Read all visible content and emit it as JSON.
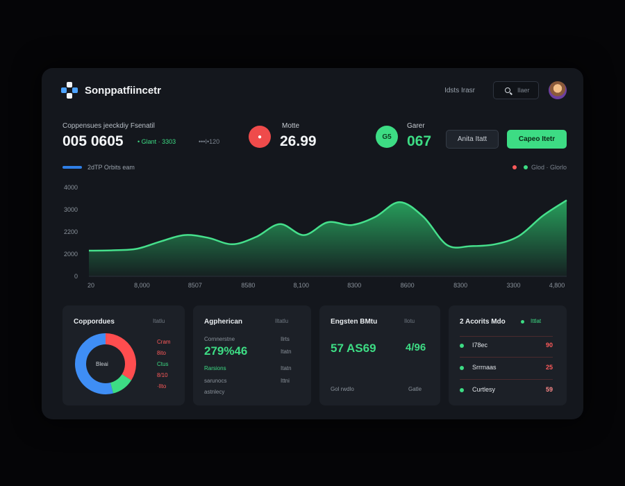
{
  "header": {
    "app_title": "Sonppatfiincetr",
    "link": "Idsts Irasr",
    "search_placeholder": "Ilaer"
  },
  "stats": {
    "primary": {
      "label": "Coppensues jeeckdiy Fsenatil",
      "value": "005 0605",
      "change": "• Glant · 3303",
      "extra": "•••I•120"
    },
    "second": {
      "icon_label": "●",
      "label": "Motte",
      "value": "26.99"
    },
    "third": {
      "icon_label": "G5",
      "label": "Garer",
      "value": "067"
    },
    "buttons": {
      "secondary": "Anita Itatt",
      "primary": "Capeo Itetr"
    }
  },
  "legend": {
    "label": "2dTP Orbits eam",
    "right_label": "Glod · Glorlo"
  },
  "chart_data": {
    "type": "area",
    "title": "",
    "x_ticks": [
      "20",
      "8,000",
      "8507",
      "8580",
      "8,100",
      "8300",
      "8600",
      "8300",
      "3300",
      "4,800"
    ],
    "y_ticks": [
      "4000",
      "3000",
      "2200",
      "2000",
      "0"
    ],
    "x": [
      0,
      1,
      2,
      3,
      4,
      5,
      6,
      7,
      8,
      9,
      10,
      11,
      12,
      13,
      14,
      15,
      16,
      17,
      18,
      19,
      20
    ],
    "values": [
      1400,
      1420,
      1500,
      1900,
      2250,
      2100,
      1750,
      2150,
      2850,
      2250,
      2950,
      2800,
      3250,
      4050,
      3250,
      1700,
      1650,
      1750,
      2200,
      3300,
      4150
    ],
    "ylim": [
      0,
      5000
    ],
    "series": [
      {
        "name": "2dTP Orbits eam",
        "color": "#2ecc71"
      }
    ],
    "legend_position": "top-right",
    "grid": false
  },
  "cards": {
    "donut": {
      "title": "Coppordues",
      "tag": "Itatlu",
      "center_label": "Bleai",
      "segments": [
        {
          "value": 34,
          "color": "#ff4d4f"
        },
        {
          "value": 12,
          "color": "#3ddc84"
        },
        {
          "value": 54,
          "color": "#3f8ef5"
        }
      ],
      "labels": [
        {
          "text": "Cram",
          "color": "#ff5a5a"
        },
        {
          "text": "8ito",
          "color": "#ff5a5a"
        },
        {
          "text": "Ctus",
          "color": "#3ddc84"
        },
        {
          "text": "8/10",
          "color": "#ff5a5a"
        },
        {
          "text": "·Ilto",
          "color": "#ff5a5a"
        }
      ]
    },
    "appr": {
      "title": "Agpherican",
      "tag": "Iltatlu",
      "sub1": "Cornnerstne",
      "value": "279%46",
      "sub2": "Rarsions",
      "sub3": "sarunocs",
      "sub4": "astnlecy",
      "right": [
        "Ilrts",
        "Itatn",
        "Itatn",
        "Ittni"
      ]
    },
    "eng": {
      "title": "Engsten BMtu",
      "tag": "Ilotu",
      "value": "57 AS69",
      "value_right": "4/96",
      "left_bottom": "Gol rwdlo",
      "right_bottom": "Gatle"
    },
    "list": {
      "title": "2 Acorits Mdo",
      "tag": "Ittlat",
      "items": [
        {
          "name": "I78ec",
          "value": "90"
        },
        {
          "name": "Srrrnaas",
          "value": "25"
        },
        {
          "name": "Curtlesy",
          "value": "59"
        }
      ]
    }
  }
}
